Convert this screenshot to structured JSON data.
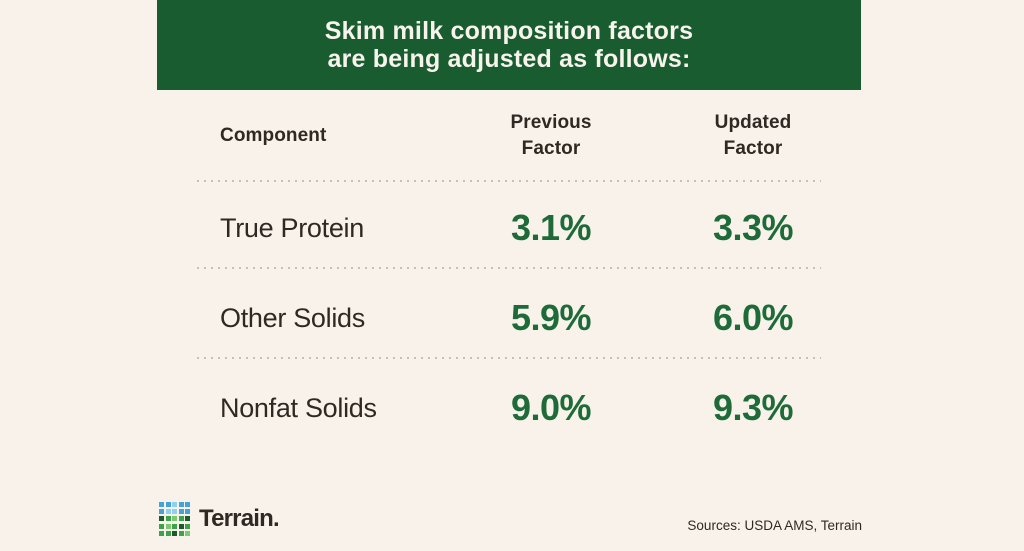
{
  "colors": {
    "background": "#f8f2ea",
    "banner_green": "#185c30",
    "banner_text": "#f8f3ec",
    "value_green": "#1e6b39",
    "text_dark": "#2e2a23",
    "divider": "#c7c0b5"
  },
  "banner": {
    "title": "Skim milk composition factors\nare being adjusted as follows:"
  },
  "table": {
    "columns": [
      "Component",
      "Previous\nFactor",
      "Updated\nFactor"
    ],
    "rows": [
      {
        "component": "True Protein",
        "previous": "3.1%",
        "updated": "3.3%"
      },
      {
        "component": "Other Solids",
        "previous": "5.9%",
        "updated": "6.0%"
      },
      {
        "component": "Nonfat Solids",
        "previous": "9.0%",
        "updated": "9.3%"
      }
    ]
  },
  "footer": {
    "brand": "Terrain.",
    "sources": "Sources: USDA AMS, Terrain",
    "logo_palette": {
      "b1": "#2f89c5",
      "b2": "#45a3da",
      "b3": "#8fd0f0",
      "g1": "#1c5a2e",
      "g2": "#3ca24c",
      "g3": "#7dc873"
    },
    "logo_grid": [
      [
        "b2",
        "b2",
        "b3",
        "b2",
        "b2"
      ],
      [
        "b2",
        "b3",
        "b3",
        "b2",
        "b2"
      ],
      [
        "g1",
        "g2",
        "g3",
        "g2",
        "g1"
      ],
      [
        "g2",
        "g3",
        "g2",
        "g1",
        "g2"
      ],
      [
        "g2",
        "g2",
        "g1",
        "g2",
        "g3"
      ]
    ]
  },
  "chart_data": {
    "type": "table",
    "title": "Skim milk composition factors are being adjusted as follows:",
    "columns": [
      "Component",
      "Previous Factor",
      "Updated Factor"
    ],
    "rows": [
      [
        "True Protein",
        "3.1%",
        "3.3%"
      ],
      [
        "Other Solids",
        "5.9%",
        "6.0%"
      ],
      [
        "Nonfat Solids",
        "9.0%",
        "9.3%"
      ]
    ],
    "categories": [
      "True Protein",
      "Other Solids",
      "Nonfat Solids"
    ],
    "series": [
      {
        "name": "Previous Factor",
        "values": [
          3.1,
          5.9,
          9.0
        ]
      },
      {
        "name": "Updated Factor",
        "values": [
          3.3,
          6.0,
          9.3
        ]
      }
    ],
    "unit": "%"
  }
}
